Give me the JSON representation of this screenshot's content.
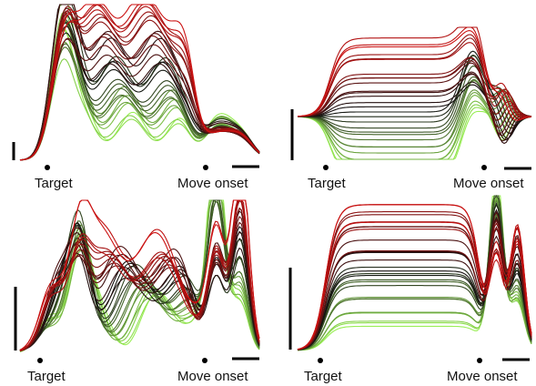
{
  "chart_data": [
    {
      "type": "line",
      "panel": "top-left",
      "x_labels": [
        {
          "x": 0.0,
          "text": "Target"
        },
        {
          "x": 1.0,
          "text": "Move onset"
        }
      ],
      "markers": [
        "dot at target",
        "dot at move onset"
      ],
      "scale_bars": [
        "vertical",
        "horizontal"
      ],
      "color_ramp": {
        "start": "#99ee55",
        "mid": "#111111",
        "end": "#cc1111"
      },
      "series_count": 30
    },
    {
      "type": "line",
      "panel": "top-right",
      "x_labels": [
        {
          "x": 0.0,
          "text": "Target"
        },
        {
          "x": 1.0,
          "text": "Move onset"
        }
      ],
      "markers": [
        "dot at target",
        "dot at move onset"
      ],
      "scale_bars": [
        "vertical",
        "horizontal"
      ],
      "color_ramp": {
        "start": "#99ee55",
        "mid": "#111111",
        "end": "#cc1111"
      },
      "series_count": 30
    },
    {
      "type": "line",
      "panel": "bottom-left",
      "x_labels": [
        {
          "x": 0.0,
          "text": "Target"
        },
        {
          "x": 1.0,
          "text": "Move onset"
        }
      ],
      "markers": [
        "dot at target",
        "dot at move onset"
      ],
      "scale_bars": [
        "vertical",
        "horizontal"
      ],
      "color_ramp": {
        "start": "#99ee55",
        "mid": "#111111",
        "end": "#cc1111"
      },
      "series_count": 30
    },
    {
      "type": "line",
      "panel": "bottom-right",
      "x_labels": [
        {
          "x": 0.0,
          "text": "Target"
        },
        {
          "x": 1.0,
          "text": "Move onset"
        }
      ],
      "markers": [
        "dot at target",
        "dot at move onset"
      ],
      "scale_bars": [
        "vertical",
        "horizontal"
      ],
      "color_ramp": {
        "start": "#99ee55",
        "mid": "#111111",
        "end": "#cc1111"
      },
      "series_count": 30
    }
  ],
  "labels": {
    "panel_tl": {
      "target": "Target",
      "move": "Move onset"
    },
    "panel_tr": {
      "target": "Target",
      "move": "Move onset"
    },
    "panel_bl": {
      "target": "Target",
      "move": "Move onset"
    },
    "panel_br": {
      "target": "Target",
      "move": "Move onset"
    }
  }
}
